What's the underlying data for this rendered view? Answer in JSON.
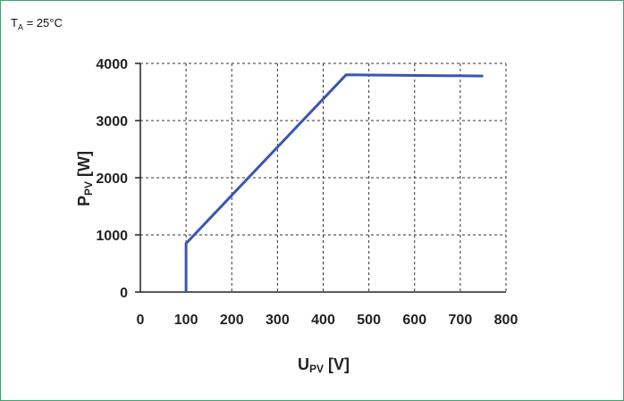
{
  "condition": {
    "symbol": "T",
    "subscript": "A",
    "rest": " = 25°C"
  },
  "chart_data": {
    "type": "line",
    "xlabel": {
      "main": "U",
      "sub": "PV",
      "unit": " [V]"
    },
    "ylabel": {
      "main": "P",
      "sub": "PV",
      "unit": " [W]"
    },
    "xlim": [
      0,
      800
    ],
    "ylim": [
      0,
      4000
    ],
    "xticks": [
      0,
      100,
      200,
      300,
      400,
      500,
      600,
      700,
      800
    ],
    "yticks": [
      0,
      1000,
      2000,
      3000,
      4000
    ],
    "grid": true,
    "series": [
      {
        "color": "#3a55b4",
        "x": [
          100,
          100,
          450,
          750
        ],
        "y": [
          0,
          850,
          3800,
          3780
        ]
      }
    ]
  }
}
